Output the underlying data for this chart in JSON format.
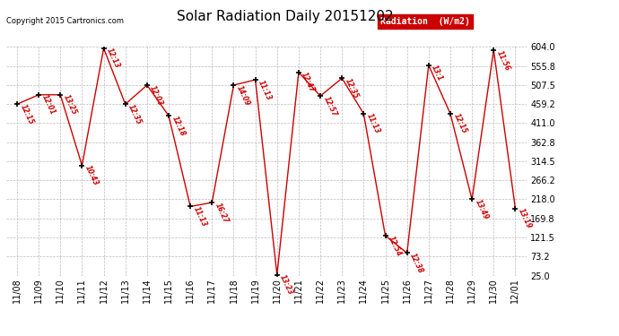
{
  "title": "Solar Radiation Daily 20151202",
  "copyright": "Copyright 2015 Cartronics.com",
  "legend_label": "Radiation  (W/m2)",
  "dates": [
    "11/08",
    "11/09",
    "11/10",
    "11/11",
    "11/12",
    "11/13",
    "11/14",
    "11/15",
    "11/16",
    "11/17",
    "11/18",
    "11/19",
    "11/20",
    "11/21",
    "11/22",
    "11/23",
    "11/24",
    "11/25",
    "11/26",
    "11/27",
    "11/28",
    "11/29",
    "11/30",
    "12/01"
  ],
  "values": [
    459.2,
    483.0,
    483.0,
    304.0,
    601.0,
    459.2,
    507.5,
    430.0,
    200.0,
    210.0,
    507.5,
    521.0,
    27.0,
    540.0,
    480.0,
    525.0,
    435.0,
    126.0,
    82.0,
    558.0,
    435.0,
    218.0,
    596.0,
    195.0
  ],
  "times": [
    "12:15",
    "12:01",
    "13:25",
    "10:43",
    "12:13",
    "12:35",
    "12:03",
    "12:18",
    "11:13",
    "16:27",
    "14:09",
    "11:13",
    "13:23",
    "12:47",
    "12:57",
    "12:35",
    "11:13",
    "12:54",
    "12:38",
    "13:1",
    "12:15",
    "13:49",
    "11:56",
    "13:19"
  ],
  "ylim": [
    25.0,
    604.0
  ],
  "yticks": [
    25.0,
    73.2,
    121.5,
    169.8,
    218.0,
    266.2,
    314.5,
    362.8,
    411.0,
    459.2,
    507.5,
    555.8,
    604.0
  ],
  "line_color": "#cc0000",
  "marker_color": "#000000",
  "bg_color": "#ffffff",
  "grid_color": "#aaaaaa",
  "title_fontsize": 11,
  "legend_bg": "#cc0000",
  "legend_text_color": "#ffffff"
}
